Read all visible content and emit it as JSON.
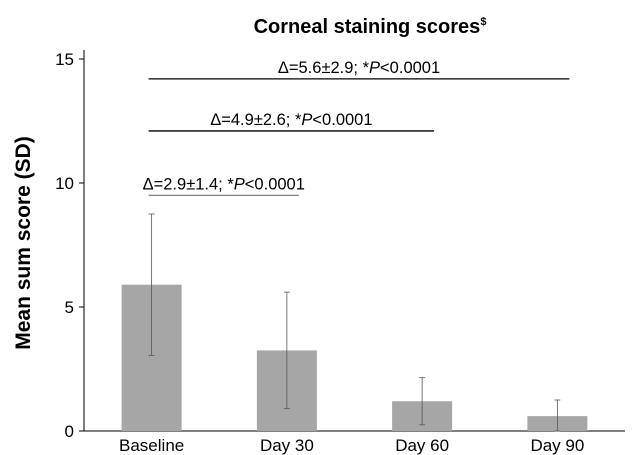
{
  "chart_data": {
    "type": "bar",
    "title": "Corneal staining scores",
    "title_superscript": "$",
    "xlabel": "",
    "ylabel": "Mean sum score (SD)",
    "ylim": [
      0,
      15
    ],
    "yticks": [
      "0",
      "5",
      "10",
      "15"
    ],
    "categories": [
      "Baseline",
      "Day 30",
      "Day 60",
      "Day 90"
    ],
    "values": [
      5.9,
      3.25,
      1.2,
      0.6
    ],
    "error_sd": [
      2.85,
      2.35,
      0.95,
      0.65
    ],
    "bar_color": "#a6a6a6",
    "grid": false,
    "annotations": [
      {
        "from_category": "Baseline",
        "to_category": "Day 30",
        "y": 9.5,
        "prefix": "Δ=2.9±1.4; *",
        "p_label": "P",
        "suffix": "<0.0001",
        "line_color": "#808080"
      },
      {
        "from_category": "Baseline",
        "to_category": "Day 60",
        "y": 12.1,
        "prefix": "Δ=4.9±2.6; *",
        "p_label": "P",
        "suffix": "<0.0001",
        "line_color": "#000000"
      },
      {
        "from_category": "Baseline",
        "to_category": "Day 90",
        "y": 14.2,
        "prefix": "Δ=5.6±2.9; *",
        "p_label": "P",
        "suffix": "<0.0001",
        "line_color": "#000000"
      }
    ]
  }
}
